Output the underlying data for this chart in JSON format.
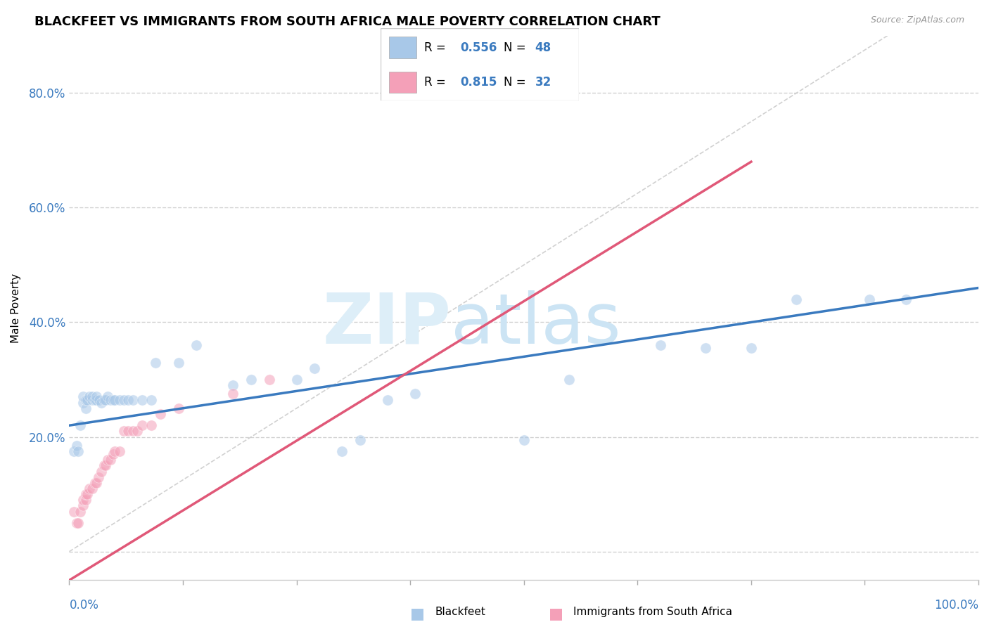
{
  "title": "BLACKFEET VS IMMIGRANTS FROM SOUTH AFRICA MALE POVERTY CORRELATION CHART",
  "source": "Source: ZipAtlas.com",
  "ylabel": "Male Poverty",
  "blue_color": "#a8c8e8",
  "pink_color": "#f4a0b8",
  "line_blue": "#3a7abf",
  "line_pink": "#e05878",
  "diagonal_color": "#cccccc",
  "background": "#ffffff",
  "grid_color": "#cccccc",
  "blue_scatter": [
    [
      0.005,
      0.175
    ],
    [
      0.008,
      0.185
    ],
    [
      0.01,
      0.175
    ],
    [
      0.012,
      0.22
    ],
    [
      0.015,
      0.26
    ],
    [
      0.015,
      0.27
    ],
    [
      0.018,
      0.25
    ],
    [
      0.018,
      0.265
    ],
    [
      0.02,
      0.265
    ],
    [
      0.022,
      0.27
    ],
    [
      0.025,
      0.265
    ],
    [
      0.025,
      0.27
    ],
    [
      0.028,
      0.265
    ],
    [
      0.03,
      0.265
    ],
    [
      0.03,
      0.27
    ],
    [
      0.033,
      0.265
    ],
    [
      0.035,
      0.26
    ],
    [
      0.038,
      0.265
    ],
    [
      0.04,
      0.265
    ],
    [
      0.042,
      0.27
    ],
    [
      0.045,
      0.265
    ],
    [
      0.048,
      0.265
    ],
    [
      0.05,
      0.265
    ],
    [
      0.055,
      0.265
    ],
    [
      0.06,
      0.265
    ],
    [
      0.065,
      0.265
    ],
    [
      0.07,
      0.265
    ],
    [
      0.08,
      0.265
    ],
    [
      0.09,
      0.265
    ],
    [
      0.095,
      0.33
    ],
    [
      0.12,
      0.33
    ],
    [
      0.14,
      0.36
    ],
    [
      0.18,
      0.29
    ],
    [
      0.2,
      0.3
    ],
    [
      0.25,
      0.3
    ],
    [
      0.27,
      0.32
    ],
    [
      0.3,
      0.175
    ],
    [
      0.32,
      0.195
    ],
    [
      0.35,
      0.265
    ],
    [
      0.38,
      0.275
    ],
    [
      0.5,
      0.195
    ],
    [
      0.55,
      0.3
    ],
    [
      0.65,
      0.36
    ],
    [
      0.7,
      0.355
    ],
    [
      0.75,
      0.355
    ],
    [
      0.8,
      0.44
    ],
    [
      0.88,
      0.44
    ],
    [
      0.92,
      0.44
    ]
  ],
  "pink_scatter": [
    [
      0.005,
      0.07
    ],
    [
      0.008,
      0.05
    ],
    [
      0.01,
      0.05
    ],
    [
      0.012,
      0.07
    ],
    [
      0.015,
      0.08
    ],
    [
      0.015,
      0.09
    ],
    [
      0.018,
      0.09
    ],
    [
      0.018,
      0.1
    ],
    [
      0.02,
      0.1
    ],
    [
      0.022,
      0.11
    ],
    [
      0.025,
      0.11
    ],
    [
      0.028,
      0.12
    ],
    [
      0.03,
      0.12
    ],
    [
      0.032,
      0.13
    ],
    [
      0.035,
      0.14
    ],
    [
      0.038,
      0.15
    ],
    [
      0.04,
      0.15
    ],
    [
      0.042,
      0.16
    ],
    [
      0.045,
      0.16
    ],
    [
      0.048,
      0.17
    ],
    [
      0.05,
      0.175
    ],
    [
      0.055,
      0.175
    ],
    [
      0.06,
      0.21
    ],
    [
      0.065,
      0.21
    ],
    [
      0.07,
      0.21
    ],
    [
      0.075,
      0.21
    ],
    [
      0.08,
      0.22
    ],
    [
      0.09,
      0.22
    ],
    [
      0.1,
      0.24
    ],
    [
      0.12,
      0.25
    ],
    [
      0.18,
      0.275
    ],
    [
      0.22,
      0.3
    ]
  ],
  "xlim": [
    0.0,
    1.0
  ],
  "ylim": [
    -0.05,
    0.9
  ],
  "yticks": [
    0.0,
    0.2,
    0.4,
    0.6,
    0.8
  ],
  "ytick_labels": [
    "",
    "20.0%",
    "40.0%",
    "60.0%",
    "80.0%"
  ],
  "xticks": [
    0.0,
    0.125,
    0.25,
    0.375,
    0.5,
    0.625,
    0.75,
    0.875,
    1.0
  ],
  "title_fontsize": 13,
  "label_fontsize": 11,
  "tick_fontsize": 12,
  "scatter_size": 120,
  "scatter_alpha": 0.55,
  "legend_r1": "0.556",
  "legend_n1": "48",
  "legend_r2": "0.815",
  "legend_n2": "32"
}
